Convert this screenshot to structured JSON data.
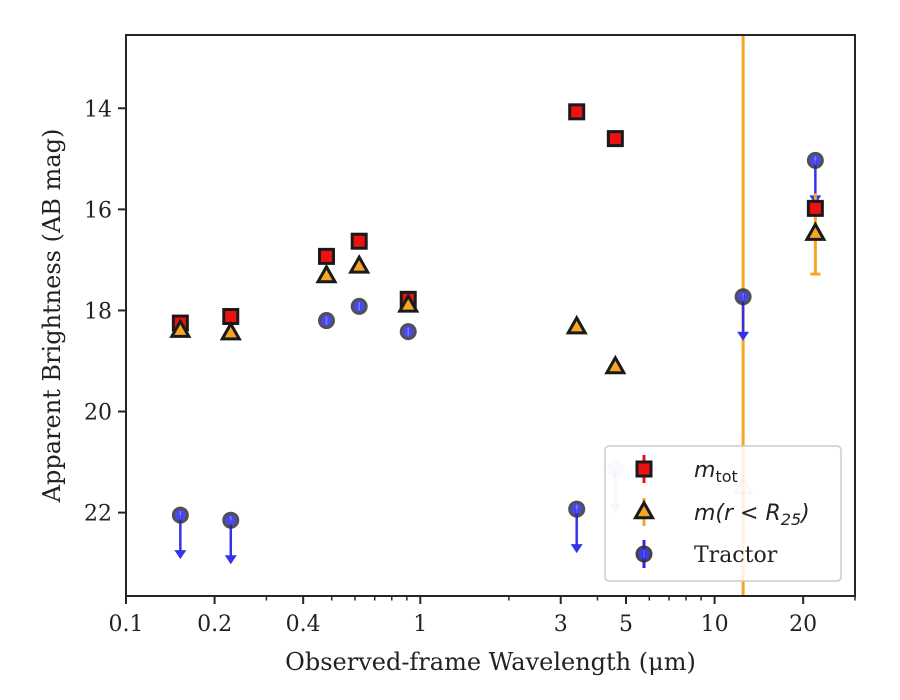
{
  "chart_data": {
    "type": "scatter",
    "xlabel": "Observed-frame Wavelength (μm)",
    "ylabel": "Apparent Brightness (AB mag)",
    "xscale": "log",
    "xlim": [
      0.1,
      30
    ],
    "ylim": [
      23.65,
      12.55
    ],
    "y_inverted": true,
    "x_ticks": [
      {
        "value": 0.1,
        "label": "0.1"
      },
      {
        "value": 0.2,
        "label": "0.2"
      },
      {
        "value": 0.4,
        "label": "0.4"
      },
      {
        "value": 1,
        "label": "1"
      },
      {
        "value": 3,
        "label": "3"
      },
      {
        "value": 5,
        "label": "5"
      },
      {
        "value": 10,
        "label": "10"
      },
      {
        "value": 20,
        "label": "20"
      }
    ],
    "y_ticks": [
      {
        "value": 14,
        "label": "14"
      },
      {
        "value": 16,
        "label": "16"
      },
      {
        "value": 18,
        "label": "18"
      },
      {
        "value": 20,
        "label": "20"
      },
      {
        "value": 22,
        "label": "22"
      }
    ],
    "vertical_line": {
      "x": 12.5,
      "color": "#f5a623"
    },
    "legend_position": "lower-right",
    "series": [
      {
        "name": "m_tot",
        "legend_main": "m",
        "legend_sub": "tot",
        "marker": "square",
        "color": "#ee1111",
        "points": [
          {
            "x": 0.153,
            "y": 18.25
          },
          {
            "x": 0.227,
            "y": 18.12
          },
          {
            "x": 0.48,
            "y": 16.93
          },
          {
            "x": 0.62,
            "y": 16.63
          },
          {
            "x": 0.91,
            "y": 17.78
          },
          {
            "x": 3.4,
            "y": 14.07
          },
          {
            "x": 4.6,
            "y": 14.6
          },
          {
            "x": 22.0,
            "y": 15.98
          }
        ]
      },
      {
        "name": "m(r < R25)",
        "legend_main": "m(r < R",
        "legend_sub": "25",
        "legend_end": ")",
        "marker": "triangle",
        "color": "#f5a623",
        "points": [
          {
            "x": 0.153,
            "y": 18.4
          },
          {
            "x": 0.227,
            "y": 18.45
          },
          {
            "x": 0.48,
            "y": 17.32
          },
          {
            "x": 0.62,
            "y": 17.13
          },
          {
            "x": 0.91,
            "y": 17.9
          },
          {
            "x": 3.4,
            "y": 18.33
          },
          {
            "x": 4.6,
            "y": 19.12
          },
          {
            "x": 12.5,
            "y": 21.5
          },
          {
            "x": 22.0,
            "y": 16.48,
            "err": 0.8
          }
        ]
      },
      {
        "name": "Tractor",
        "marker": "circle",
        "color": "#2a2ae8",
        "points": [
          {
            "x": 0.153,
            "y": 22.05,
            "upper_limit": true
          },
          {
            "x": 0.227,
            "y": 22.15,
            "upper_limit": true
          },
          {
            "x": 0.48,
            "y": 18.2
          },
          {
            "x": 0.62,
            "y": 17.92
          },
          {
            "x": 0.91,
            "y": 18.42
          },
          {
            "x": 3.4,
            "y": 21.93,
            "upper_limit": true
          },
          {
            "x": 4.6,
            "y": 21.13,
            "upper_limit": true
          },
          {
            "x": 12.5,
            "y": 17.73,
            "upper_limit": true
          },
          {
            "x": 22.0,
            "y": 15.03,
            "upper_limit": true
          }
        ]
      }
    ]
  }
}
